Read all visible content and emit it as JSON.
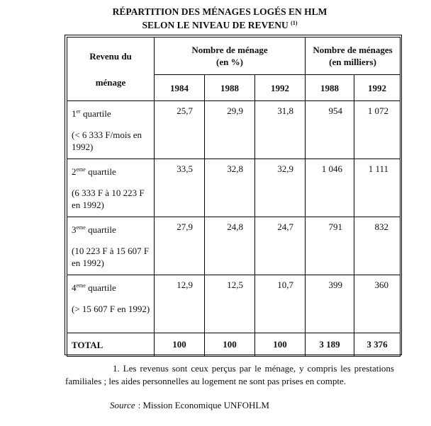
{
  "title": {
    "line1": "RÉPARTITION DES MÉNAGES LOGÉS EN HLM",
    "line2": "SELON LE NIVEAU DE REVENU",
    "note_ref": "(1)"
  },
  "table": {
    "header": {
      "col0": [
        "Revenu du",
        "ménage"
      ],
      "group1": [
        "Nombre de ménage",
        "(en %)"
      ],
      "group2": [
        "Nombre de ménages",
        "(en milliers)"
      ],
      "years": [
        "1984",
        "1988",
        "1992",
        "1988",
        "1992"
      ]
    },
    "rows": [
      {
        "ordinal": "1",
        "suffix": "er",
        "label": "quartile",
        "detail": "(< 6 333 F/mois en 1992)",
        "cells": [
          "25,7",
          "29,9",
          "31,8",
          "954",
          "1 072"
        ]
      },
      {
        "ordinal": "2",
        "suffix": "eme",
        "label": "quartile",
        "detail": "(6 333 F à 10 223 F en 1992)",
        "cells": [
          "33,5",
          "32,8",
          "32,9",
          "1 046",
          "1 111"
        ]
      },
      {
        "ordinal": "3",
        "suffix": "eme",
        "label": "quartile",
        "detail": "(10 223 F à 15 607 F en 1992)",
        "cells": [
          "27,9",
          "24,8",
          "24,7",
          "791",
          "832"
        ]
      },
      {
        "ordinal": "4",
        "suffix": "eme",
        "label": "quartile",
        "detail": "(> 15 607 F en 1992)",
        "cells": [
          "12,9",
          "12,5",
          "10,7",
          "399",
          "360"
        ]
      }
    ],
    "total": {
      "label": "TOTAL",
      "cells": [
        "100",
        "100",
        "100",
        "3 189",
        "3 376"
      ]
    }
  },
  "footnote": "1. Les revenus sont ceux perçus par le ménage, y compris les prestations familiales ; les aides personnelles au logement ne sont pas prises en compte.",
  "source": {
    "label": "Source",
    "text": ": Mission Economique UNFOHLM"
  }
}
